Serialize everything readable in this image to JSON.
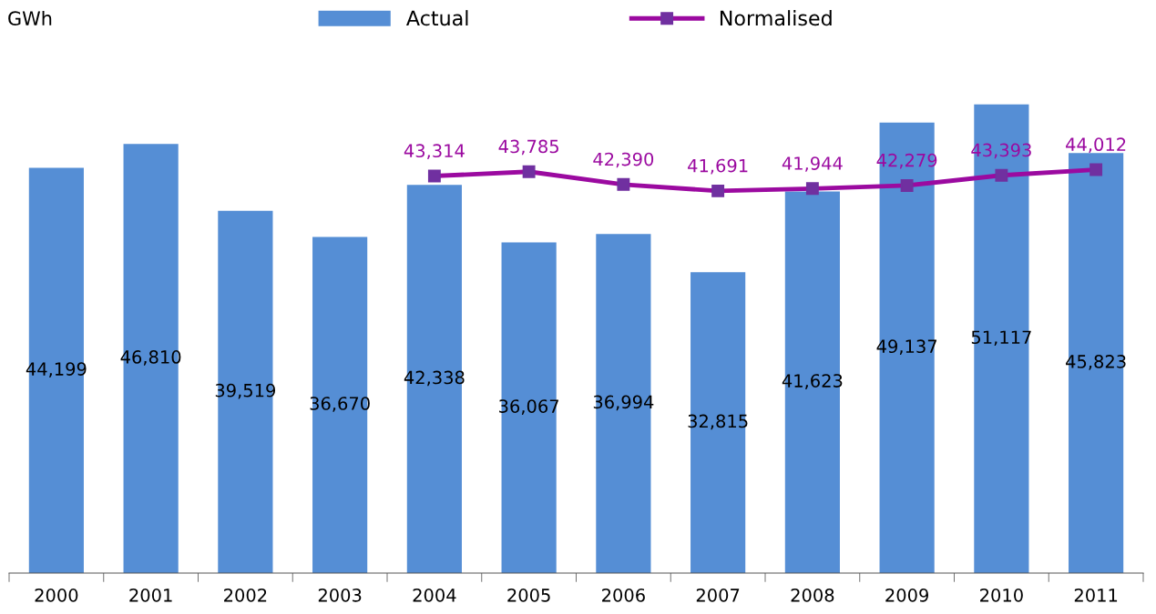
{
  "chart_data": {
    "type": "bar",
    "ylabel": "GWh",
    "categories": [
      "2000",
      "2001",
      "2002",
      "2003",
      "2004",
      "2005",
      "2006",
      "2007",
      "2008",
      "2009",
      "2010",
      "2011"
    ],
    "series": [
      {
        "name": "Actual",
        "color": "#558ed5",
        "values": [
          44199,
          46810,
          39519,
          36670,
          42338,
          36067,
          36994,
          32815,
          41623,
          49137,
          51117,
          45823
        ],
        "value_labels": [
          "44,199",
          "46,810",
          "39,519",
          "36,670",
          "42,338",
          "36,067",
          "36,994",
          "32,815",
          "41,623",
          "49,137",
          "51,117",
          "45,823"
        ]
      },
      {
        "name": "Normalised",
        "type": "line",
        "color": "#9b0aa0",
        "values": [
          null,
          null,
          null,
          null,
          43314,
          43785,
          42390,
          41691,
          41944,
          42279,
          43393,
          44012
        ],
        "value_labels": [
          null,
          null,
          null,
          null,
          "43,314",
          "43,785",
          "42,390",
          "41,691",
          "41,944",
          "42,279",
          "43,393",
          "44,012"
        ]
      }
    ],
    "tick_labels": "x",
    "legend": "top",
    "marker": "square"
  }
}
